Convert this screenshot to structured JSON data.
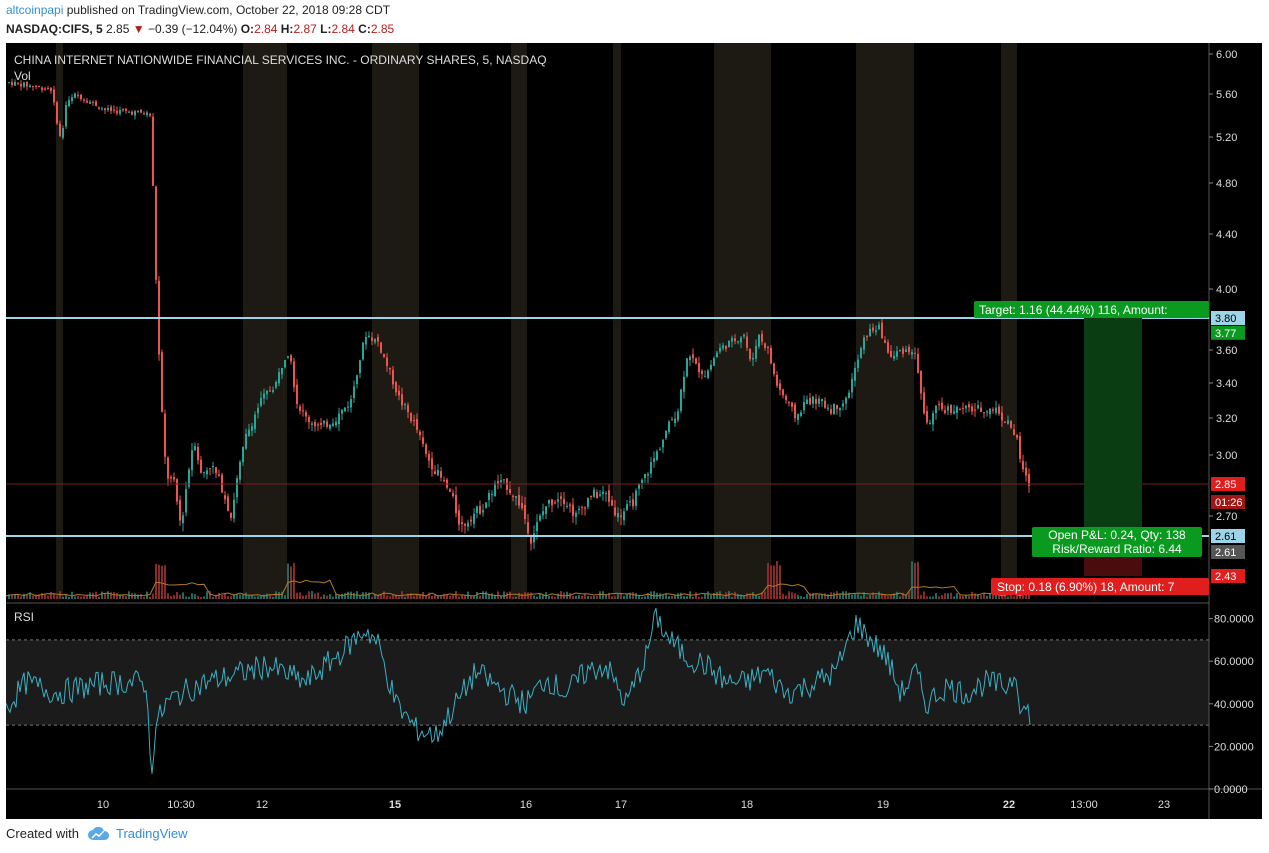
{
  "header": {
    "author": "altcoinpapi",
    "published": "published on TradingView.com, October 22, 2018 09:28 CDT",
    "symbol": "NASDAQ:CIFS, 5",
    "last": "2.85",
    "down_arrow": "▼",
    "change": "−0.39 (−12.04%)",
    "o_label": "O:",
    "o_value": "2.84",
    "h_label": "H:",
    "h_value": "2.87",
    "l_label": "L:",
    "l_value": "2.84",
    "c_label": "C:",
    "c_value": "2.85"
  },
  "chart": {
    "title": "CHINA INTERNET NATIONWIDE FINANCIAL SERVICES INC. - ORDINARY SHARES, 5, NASDAQ",
    "volume_label": "Vol",
    "rsi_label": "RSI",
    "price_ticks": [
      "6.00",
      "5.60",
      "5.20",
      "4.80",
      "4.40",
      "4.00",
      "3.60",
      "3.40",
      "3.20",
      "3.00",
      "2.70"
    ],
    "rsi_ticks": [
      "80.0000",
      "60.0000",
      "40.0000",
      "20.0000",
      "0.0000"
    ],
    "x_ticks": [
      "10",
      "10:30",
      "12",
      "15",
      "16",
      "17",
      "18",
      "19",
      "22",
      "13:00",
      "23"
    ],
    "bold_x_ticks": [
      "15",
      "22"
    ],
    "target_label": "Target: 1.16 (44.44%) 116, Amount:",
    "open_pl_label": "Open P&L: 0.24, Qty: 138",
    "rr_label": "Risk/Reward Ratio: 6.44",
    "stop_label": "Stop: 0.18 (6.90%) 18, Amount: 7",
    "price_badges": {
      "target": "3.80",
      "resist": "3.77",
      "last": "2.85",
      "countdown": "01:26",
      "entry": "2.61",
      "entry2": "2.61",
      "stop": "2.43"
    },
    "colors": {
      "up": "#26a69a",
      "down": "#ef5350",
      "rsi_line": "#3ab0c2",
      "level_line": "#9ed4e8",
      "target_green": "#0a9a1f",
      "stop_red": "#e01e1e"
    }
  },
  "chart_data": {
    "type": "line",
    "title": "CHINA INTERNET NATIONWIDE FINANCIAL SERVICES INC. - ORDINARY SHARES, 5, NASDAQ",
    "xlabel": "",
    "ylabel": "",
    "price_points": {
      "x": [
        "10",
        "10:30",
        "12",
        "15",
        "16",
        "17",
        "18",
        "19",
        "22"
      ],
      "y": [
        5.45,
        2.85,
        3.25,
        3.75,
        2.55,
        2.75,
        3.7,
        3.4,
        2.85
      ]
    },
    "price_ylim": [
      2.43,
      6.0
    ],
    "levels": {
      "target": 3.8,
      "entry": 2.61,
      "stop": 2.43,
      "last": 2.85
    },
    "rsi_range": [
      0,
      80
    ],
    "rsi_bands": [
      30,
      70
    ]
  },
  "footer": {
    "created_with": "Created with",
    "brand": "TradingView"
  }
}
